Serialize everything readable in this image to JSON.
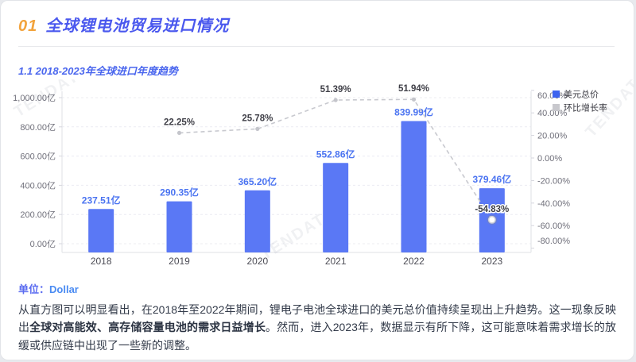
{
  "header": {
    "number": "01",
    "title": "全球锂电池贸易进口情况",
    "number_color": "#f2a33c",
    "title_color": "#4a58ee"
  },
  "section": {
    "subtitle": "1.1 2018-2023年全球进口年度趋势"
  },
  "chart_data": {
    "type": "bar",
    "categories": [
      "2018",
      "2019",
      "2020",
      "2021",
      "2022",
      "2023"
    ],
    "series": [
      {
        "name": "美元总价",
        "type": "bar",
        "axis": "left",
        "unit": "亿",
        "values": [
          237.51,
          290.35,
          365.2,
          552.86,
          839.99,
          379.46
        ],
        "labels": [
          "237.51亿",
          "290.35亿",
          "365.20亿",
          "552.86亿",
          "839.99亿",
          "379.46亿"
        ],
        "color": "#5a78f5",
        "label_color": "#4b74f1"
      },
      {
        "name": "环比增长率",
        "type": "line",
        "axis": "right",
        "unit": "%",
        "values": [
          null,
          22.25,
          25.78,
          51.39,
          51.94,
          -54.83
        ],
        "labels": [
          "",
          "22.25%",
          "25.78%",
          "51.39%",
          "51.94%",
          "-54.83%"
        ],
        "color": "#c8c9cf",
        "label_color": "#3f3f47",
        "line_style": "dashed"
      }
    ],
    "left_axis": {
      "min": 0,
      "max": 1000,
      "ticks": [
        {
          "value": 1000,
          "label": "1,000.00亿"
        },
        {
          "value": 800,
          "label": "800.00亿"
        },
        {
          "value": 600,
          "label": "600.00亿"
        },
        {
          "value": 400,
          "label": "400.00亿"
        },
        {
          "value": 200,
          "label": "200.00亿"
        },
        {
          "value": 0,
          "label": "0.00亿"
        }
      ]
    },
    "right_axis": {
      "min": -80,
      "max": 60,
      "ticks": [
        {
          "value": 60,
          "label": "60.00%"
        },
        {
          "value": 40,
          "label": "40.00%"
        },
        {
          "value": 20,
          "label": "20.00%"
        },
        {
          "value": 0,
          "label": "0.00%"
        },
        {
          "value": -20,
          "label": "-20.00%"
        },
        {
          "value": -40,
          "label": "-40.00%"
        },
        {
          "value": -60,
          "label": "-60.00%"
        },
        {
          "value": -80,
          "label": "-80.00%"
        }
      ]
    },
    "legend": [
      {
        "label": "美元总价",
        "color": "#3d63ef",
        "shape": "square"
      },
      {
        "label": "环比增长率",
        "color": "#c8c8cd",
        "shape": "square"
      }
    ],
    "legend_position": "top-right",
    "grid": true,
    "watermark": "TENDATA"
  },
  "footer": {
    "unit_label": "单位：",
    "unit_value": "Dollar",
    "paragraph": {
      "part1": "从直方图可以明显看出，在2018年至2022年期间，锂电子电池全球进口的美元总价值持续呈现出上升趋势。这一现象反映出",
      "bold": "全球对高能效、高存储容量电池的需求日益增长",
      "part2": "。然而，进入2023年，数据显示有所下降，这可能意味着需求增长的放缓或供应链中出现了一些新的调整。"
    }
  }
}
